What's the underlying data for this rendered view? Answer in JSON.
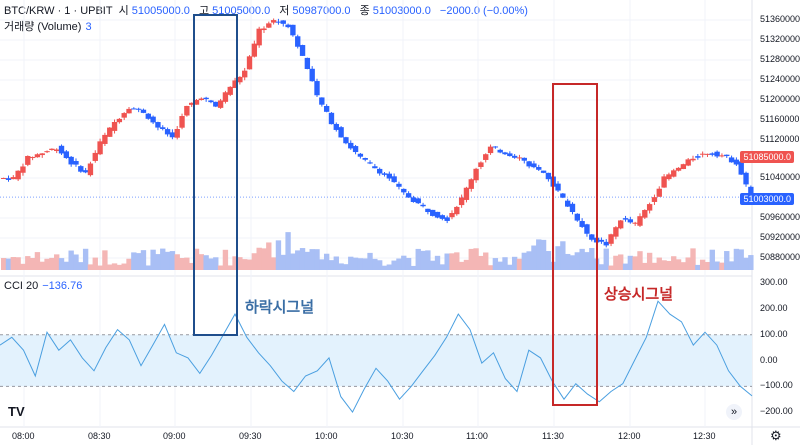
{
  "header": {
    "symbol": "BTC/KRW · 1 · UPBIT",
    "open_k": "시",
    "open_v": "51005000.0",
    "high_k": "고",
    "high_v": "51005000.0",
    "low_k": "저",
    "low_v": "50987000.0",
    "close_k": "종",
    "close_v": "51003000.0",
    "change": "−2000.0 (−0.00%)"
  },
  "volume": {
    "label": "거래량 (Volume)",
    "value": "3"
  },
  "cci": {
    "label": "CCI 20",
    "value": "−136.76"
  },
  "price_axis": [
    "51360000.0",
    "51320000.0",
    "51280000.0",
    "51240000.0",
    "51200000.0",
    "51160000.0",
    "51120000.0",
    "51040000.0",
    "50960000.0",
    "50920000.0",
    "50880000.0"
  ],
  "price_tags": {
    "current": "51085000.0",
    "last": "51003000.0"
  },
  "cci_axis": [
    "300.00",
    "200.00",
    "100.00",
    "0.00",
    "−100.00",
    "−200.00"
  ],
  "time_axis": [
    "08:00",
    "08:30",
    "09:00",
    "09:30",
    "10:00",
    "10:30",
    "11:00",
    "11:30",
    "12:00",
    "12:30"
  ],
  "annotations": {
    "sell": "하락시그널",
    "buy": "상승시그널"
  },
  "logo": "TV",
  "colors": {
    "up": "#26a69a",
    "down": "#ef5350",
    "bull": "#ef5350",
    "bear": "#2962ff",
    "sell_box": "#1f4e8c",
    "buy_box": "#c62828",
    "cci_line": "#4a9fe0",
    "band": "#e3f2fd"
  },
  "chart_data": {
    "type": "candlestick",
    "x_range": [
      "08:00",
      "12:40"
    ],
    "ylim": [
      50860000,
      51370000
    ],
    "close_approx": [
      51040000,
      51080000,
      51090000,
      51100000,
      51070000,
      51050000,
      51110000,
      51150000,
      51180000,
      51170000,
      51140000,
      51120000,
      51180000,
      51200000,
      51180000,
      51220000,
      51250000,
      51330000,
      51350000,
      51340000,
      51280000,
      51200000,
      51150000,
      51110000,
      51080000,
      51060000,
      51040000,
      51010000,
      50990000,
      50970000,
      50960000,
      51000000,
      51060000,
      51100000,
      51090000,
      51080000,
      51060000,
      51040000,
      51000000,
      50960000,
      50920000,
      50910000,
      50960000,
      50950000,
      50990000,
      51040000,
      51060000,
      51080000,
      51090000,
      51085000,
      51070000,
      51003000
    ],
    "cci_series": [
      60,
      90,
      40,
      -60,
      110,
      40,
      80,
      10,
      -40,
      50,
      120,
      80,
      -20,
      60,
      140,
      30,
      10,
      -50,
      20,
      100,
      180,
      90,
      30,
      -20,
      -80,
      -120,
      -60,
      -40,
      10,
      -140,
      -200,
      -110,
      -30,
      -80,
      -150,
      -100,
      -40,
      20,
      90,
      180,
      120,
      -10,
      30,
      -70,
      -120,
      40,
      10,
      -80,
      -150,
      -90,
      -130,
      -160,
      -120,
      -90,
      0,
      90,
      230,
      180,
      150,
      60,
      110,
      60,
      -40,
      -100,
      -137
    ],
    "cci_ylim": [
      -250,
      320
    ]
  }
}
